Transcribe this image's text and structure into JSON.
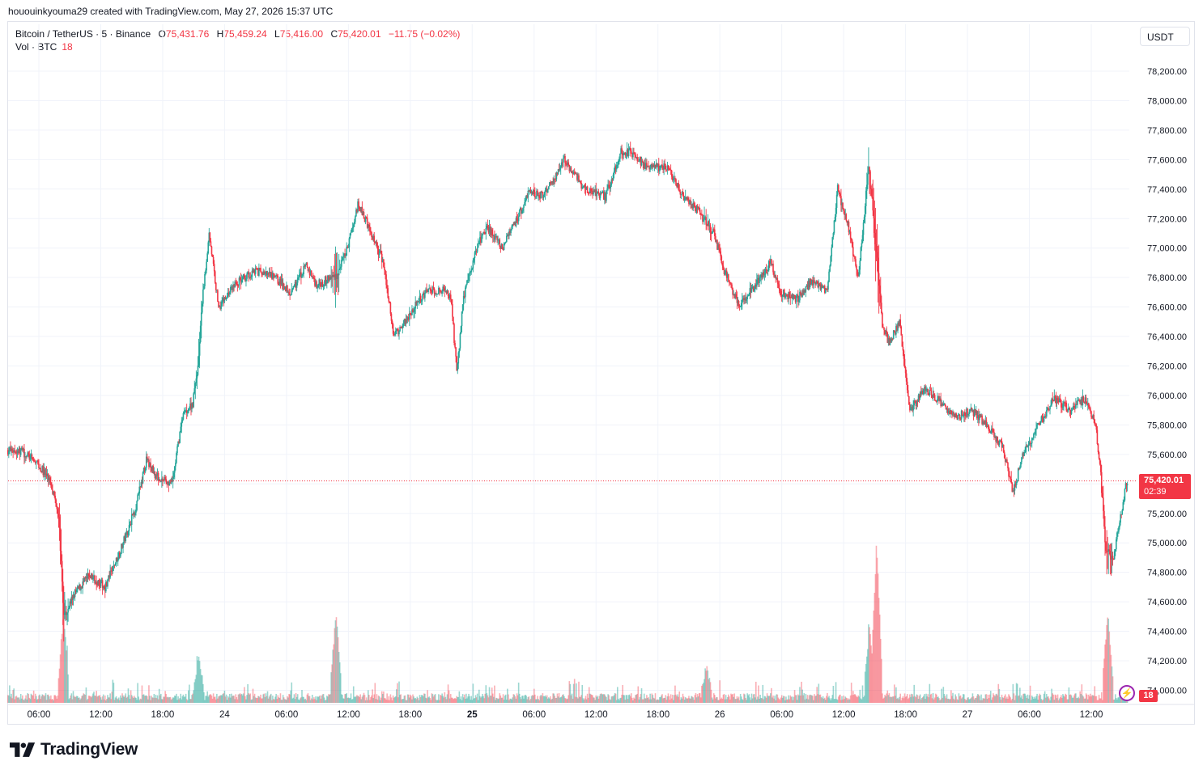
{
  "header": {
    "created_line": "hououinkyouma29 created with TradingView.com, May 27, 2026 15:37 UTC"
  },
  "legend": {
    "symbol": "Bitcoin / TetherUS · 5 · Binance",
    "o_label": "O",
    "o_value": "75,431.76",
    "h_label": "H",
    "h_value": "75,459.24",
    "l_label": "L",
    "l_value": "75,416.00",
    "c_label": "C",
    "c_value": "75,420.01",
    "change": "−11.75 (−0.02%)",
    "vol_label": "Vol · BTC",
    "vol_value": "18"
  },
  "toolbar": {
    "currency": "USDT"
  },
  "price_badge": {
    "price": "75,420.01",
    "countdown": "02:39"
  },
  "volume_badge": "18",
  "brand": {
    "name": "TradingView"
  },
  "colors": {
    "up": "#26a69a",
    "down": "#f23645",
    "grid": "#f0f3fa",
    "last_price_line": "#f23645"
  },
  "chart_data": {
    "type": "candlestick",
    "symbol": "BTCUSDT",
    "interval_minutes": 5,
    "y_ticks": [
      78200,
      78000,
      77800,
      77600,
      77400,
      77200,
      77000,
      76800,
      76600,
      76400,
      76200,
      76000,
      75800,
      75600,
      75400,
      75200,
      75000,
      74800,
      74600,
      74400,
      74200,
      74000
    ],
    "y_tick_labels": [
      "78,200.00",
      "78,000.00",
      "77,800.00",
      "77,600.00",
      "77,400.00",
      "77,200.00",
      "77,000.00",
      "76,800.00",
      "76,600.00",
      "76,400.00",
      "76,200.00",
      "76,000.00",
      "75,800.00",
      "75,600.00",
      "",
      "75,200.00",
      "75,000.00",
      "74,800.00",
      "74,600.00",
      "74,400.00",
      "74,200.00",
      "74,000.00"
    ],
    "ylim": [
      73950,
      78400
    ],
    "last_price": 75420.01,
    "x_ticks": [
      {
        "label": "06:00",
        "hour": 6
      },
      {
        "label": "12:00",
        "hour": 12
      },
      {
        "label": "18:00",
        "hour": 18
      },
      {
        "label": "24",
        "hour": 24,
        "bold": false
      },
      {
        "label": "06:00",
        "hour": 30
      },
      {
        "label": "12:00",
        "hour": 36
      },
      {
        "label": "18:00",
        "hour": 42
      },
      {
        "label": "25",
        "hour": 48,
        "bold": true
      },
      {
        "label": "06:00",
        "hour": 54
      },
      {
        "label": "12:00",
        "hour": 60
      },
      {
        "label": "18:00",
        "hour": 66
      },
      {
        "label": "26",
        "hour": 72,
        "bold": false
      },
      {
        "label": "06:00",
        "hour": 78
      },
      {
        "label": "12:00",
        "hour": 84
      },
      {
        "label": "18:00",
        "hour": 90
      },
      {
        "label": "27",
        "hour": 96,
        "bold": false
      },
      {
        "label": "06:00",
        "hour": 102
      },
      {
        "label": "12:00",
        "hour": 108
      }
    ],
    "x_range_hours": [
      3.0,
      111.5
    ],
    "price_path": [
      [
        3.0,
        75630
      ],
      [
        4.5,
        75620
      ],
      [
        6.0,
        75530
      ],
      [
        7.2,
        75420
      ],
      [
        8.0,
        75200
      ],
      [
        8.5,
        74500
      ],
      [
        9.5,
        74650
      ],
      [
        11,
        74780
      ],
      [
        12.5,
        74700
      ],
      [
        14,
        74950
      ],
      [
        15.5,
        75250
      ],
      [
        16.5,
        75560
      ],
      [
        17.5,
        75450
      ],
      [
        19,
        75400
      ],
      [
        20,
        75860
      ],
      [
        21,
        75950
      ],
      [
        21.5,
        76200
      ],
      [
        22,
        76700
      ],
      [
        22.6,
        77100
      ],
      [
        23.5,
        76600
      ],
      [
        25,
        76750
      ],
      [
        27,
        76850
      ],
      [
        29,
        76800
      ],
      [
        30.5,
        76700
      ],
      [
        32,
        76880
      ],
      [
        33,
        76750
      ],
      [
        35,
        76820
      ],
      [
        36,
        77000
      ],
      [
        37,
        77300
      ],
      [
        38,
        77150
      ],
      [
        39.5,
        76900
      ],
      [
        40.5,
        76400
      ],
      [
        42,
        76550
      ],
      [
        43.5,
        76700
      ],
      [
        45,
        76720
      ],
      [
        46,
        76680
      ],
      [
        46.6,
        76150
      ],
      [
        47.2,
        76650
      ],
      [
        48.5,
        77000
      ],
      [
        49.5,
        77150
      ],
      [
        51,
        77000
      ],
      [
        52.5,
        77200
      ],
      [
        53.5,
        77380
      ],
      [
        55,
        77350
      ],
      [
        57,
        77600
      ],
      [
        59,
        77400
      ],
      [
        61,
        77350
      ],
      [
        62.5,
        77650
      ],
      [
        63.5,
        77650
      ],
      [
        65,
        77550
      ],
      [
        67,
        77550
      ],
      [
        68.5,
        77350
      ],
      [
        70,
        77250
      ],
      [
        71.5,
        77100
      ],
      [
        72.5,
        76850
      ],
      [
        74,
        76600
      ],
      [
        75.5,
        76750
      ],
      [
        77,
        76900
      ],
      [
        78,
        76700
      ],
      [
        79.5,
        76650
      ],
      [
        81,
        76780
      ],
      [
        82.5,
        76700
      ],
      [
        83.5,
        77400
      ],
      [
        84.5,
        77150
      ],
      [
        85.5,
        76800
      ],
      [
        86.5,
        77550
      ],
      [
        87,
        77200
      ],
      [
        87.8,
        76500
      ],
      [
        88.5,
        76350
      ],
      [
        89.5,
        76500
      ],
      [
        90.5,
        75900
      ],
      [
        92,
        76050
      ],
      [
        93.5,
        75950
      ],
      [
        95,
        75850
      ],
      [
        96.5,
        75900
      ],
      [
        98,
        75800
      ],
      [
        99.5,
        75650
      ],
      [
        100.5,
        75350
      ],
      [
        101.5,
        75600
      ],
      [
        103,
        75800
      ],
      [
        104.5,
        75980
      ],
      [
        106,
        75900
      ],
      [
        107.5,
        75980
      ],
      [
        108.5,
        75800
      ],
      [
        109,
        75450
      ],
      [
        109.5,
        74950
      ],
      [
        110.2,
        74900
      ],
      [
        111.0,
        75200
      ],
      [
        111.5,
        75420
      ]
    ],
    "volume_spikes": [
      [
        8.4,
        0.55
      ],
      [
        21.5,
        0.25
      ],
      [
        34.8,
        0.55
      ],
      [
        70.7,
        0.2
      ],
      [
        87.2,
        1.0
      ],
      [
        86.5,
        0.45
      ],
      [
        109.6,
        0.55
      ]
    ]
  }
}
